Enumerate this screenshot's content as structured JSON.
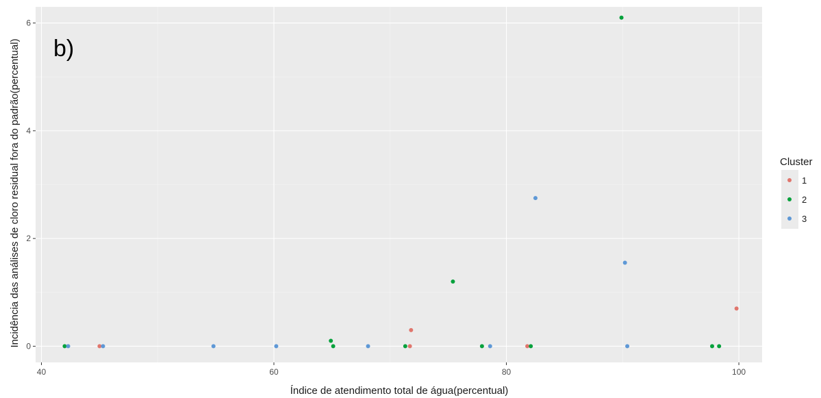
{
  "chart_data": {
    "type": "scatter",
    "panel_tag": "b)",
    "xlabel": "Índice de atendimento total de água(percentual)",
    "ylabel": "Incidência das análises de cloro residual fora do padrão(percentual)",
    "xlim": [
      39.5,
      102
    ],
    "ylim": [
      -0.3,
      6.3
    ],
    "x_ticks": [
      40,
      60,
      80,
      100
    ],
    "y_ticks": [
      0,
      2,
      4,
      6
    ],
    "x_tick_labels": [
      "40",
      "60",
      "80",
      "100"
    ],
    "y_tick_labels": [
      "0",
      "2",
      "4",
      "6"
    ],
    "grid": true,
    "legend": {
      "title": "Cluster",
      "position": "right",
      "entries": [
        {
          "label": "1",
          "color": "#e0766d"
        },
        {
          "label": "2",
          "color": "#06a13c"
        },
        {
          "label": "3",
          "color": "#5e98d6"
        }
      ]
    },
    "series": [
      {
        "name": "1",
        "color": "#e0766d",
        "points": [
          {
            "x": 45.0,
            "y": 0.0
          },
          {
            "x": 71.7,
            "y": 0.0
          },
          {
            "x": 71.8,
            "y": 0.3
          },
          {
            "x": 81.8,
            "y": 0.0
          },
          {
            "x": 99.8,
            "y": 0.7
          }
        ]
      },
      {
        "name": "2",
        "color": "#06a13c",
        "points": [
          {
            "x": 42.0,
            "y": 0.0
          },
          {
            "x": 64.9,
            "y": 0.1
          },
          {
            "x": 65.1,
            "y": 0.0
          },
          {
            "x": 71.3,
            "y": 0.0
          },
          {
            "x": 75.4,
            "y": 1.2
          },
          {
            "x": 77.9,
            "y": 0.0
          },
          {
            "x": 82.1,
            "y": 0.0
          },
          {
            "x": 89.9,
            "y": 6.1
          },
          {
            "x": 97.7,
            "y": 0.0
          },
          {
            "x": 98.3,
            "y": 0.0
          }
        ]
      },
      {
        "name": "3",
        "color": "#5e98d6",
        "points": [
          {
            "x": 42.3,
            "y": 0.0
          },
          {
            "x": 45.3,
            "y": 0.0
          },
          {
            "x": 54.8,
            "y": 0.0
          },
          {
            "x": 60.2,
            "y": 0.0
          },
          {
            "x": 68.1,
            "y": 0.0
          },
          {
            "x": 78.6,
            "y": 0.0
          },
          {
            "x": 82.5,
            "y": 2.75
          },
          {
            "x": 90.2,
            "y": 1.55
          },
          {
            "x": 90.4,
            "y": 0.0
          }
        ]
      }
    ]
  }
}
